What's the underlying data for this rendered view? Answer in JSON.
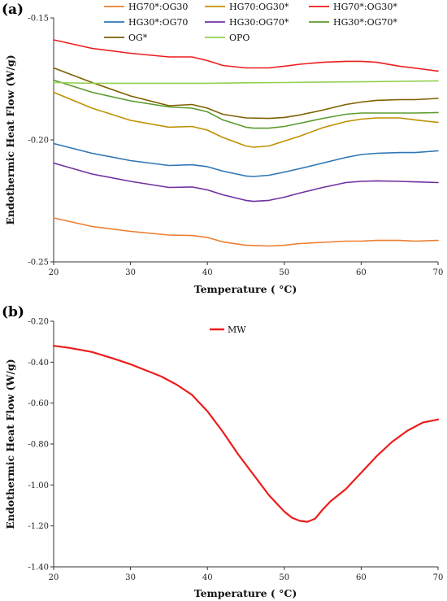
{
  "chart_data": [
    {
      "type": "line",
      "panel_label": "(a)",
      "xlabel": "Temperature ( °C)",
      "ylabel": "Endothermic Heat Flow (W/g)",
      "xlim": [
        20,
        70
      ],
      "ylim": [
        -0.25,
        -0.15
      ],
      "xticks": [
        "20",
        "30",
        "40",
        "50",
        "60",
        "70"
      ],
      "yticks": [
        "-0.15",
        "-0.20",
        "-0.25"
      ],
      "grid": false,
      "legend_position": "top",
      "series": [
        {
          "name": "HG70*:OG30",
          "color": "#ED7D31",
          "x": [
            20,
            25,
            30,
            35,
            38,
            40,
            42,
            45,
            48,
            50,
            52,
            55,
            58,
            60,
            62,
            65,
            67,
            70
          ],
          "y": [
            -0.232,
            -0.2355,
            -0.2375,
            -0.239,
            -0.2392,
            -0.24,
            -0.2418,
            -0.2432,
            -0.2435,
            -0.2432,
            -0.2425,
            -0.242,
            -0.2415,
            -0.2415,
            -0.2412,
            -0.2412,
            -0.2415,
            -0.2412
          ]
        },
        {
          "name": "HG70:OG30*",
          "color": "#BF9000",
          "x": [
            20,
            25,
            30,
            35,
            38,
            40,
            42,
            45,
            46,
            48,
            50,
            52,
            55,
            58,
            60,
            62,
            65,
            67,
            69,
            70
          ],
          "y": [
            -0.1805,
            -0.187,
            -0.192,
            -0.1948,
            -0.1945,
            -0.196,
            -0.199,
            -0.2025,
            -0.203,
            -0.2025,
            -0.2005,
            -0.1985,
            -0.195,
            -0.1925,
            -0.1915,
            -0.191,
            -0.191,
            -0.1918,
            -0.1925,
            -0.1928
          ]
        },
        {
          "name": "HG70*:OG30*",
          "color": "#EE1C1C",
          "x": [
            20,
            25,
            30,
            35,
            38,
            40,
            42,
            45,
            48,
            50,
            52,
            55,
            58,
            60,
            62,
            65,
            68,
            70
          ],
          "y": [
            -0.159,
            -0.1625,
            -0.1645,
            -0.166,
            -0.166,
            -0.1675,
            -0.1695,
            -0.1705,
            -0.1705,
            -0.1698,
            -0.169,
            -0.1682,
            -0.1678,
            -0.1678,
            -0.1682,
            -0.1698,
            -0.171,
            -0.1718
          ]
        },
        {
          "name": "HG30*:OG70",
          "color": "#2E75B6",
          "x": [
            20,
            25,
            30,
            35,
            38,
            40,
            42,
            45,
            46,
            48,
            50,
            52,
            55,
            58,
            60,
            62,
            65,
            67,
            70
          ],
          "y": [
            -0.2015,
            -0.2055,
            -0.2085,
            -0.2105,
            -0.2102,
            -0.211,
            -0.2128,
            -0.2148,
            -0.215,
            -0.2145,
            -0.2132,
            -0.2118,
            -0.2095,
            -0.2072,
            -0.206,
            -0.2055,
            -0.2052,
            -0.2052,
            -0.2045
          ]
        },
        {
          "name": "HG30:OG70*",
          "color": "#7030A0",
          "x": [
            20,
            25,
            30,
            35,
            38,
            40,
            42,
            45,
            46,
            48,
            50,
            52,
            55,
            58,
            60,
            62,
            65,
            67,
            70
          ],
          "y": [
            -0.2095,
            -0.214,
            -0.217,
            -0.2195,
            -0.2193,
            -0.2205,
            -0.2225,
            -0.2248,
            -0.2252,
            -0.2248,
            -0.2235,
            -0.2218,
            -0.2195,
            -0.2175,
            -0.217,
            -0.2168,
            -0.217,
            -0.2172,
            -0.2175
          ]
        },
        {
          "name": "HG30*:OG70*",
          "color": "#5B9B2F",
          "x": [
            20,
            25,
            30,
            35,
            38,
            40,
            42,
            45,
            46,
            48,
            50,
            52,
            55,
            58,
            60,
            62,
            65,
            67,
            70
          ],
          "y": [
            -0.1755,
            -0.1805,
            -0.184,
            -0.1865,
            -0.187,
            -0.1885,
            -0.1918,
            -0.1948,
            -0.1952,
            -0.1952,
            -0.1945,
            -0.1932,
            -0.1912,
            -0.1895,
            -0.189,
            -0.189,
            -0.189,
            -0.189,
            -0.1888
          ]
        },
        {
          "name": "OG*",
          "color": "#7F6000",
          "x": [
            20,
            25,
            30,
            35,
            38,
            40,
            42,
            45,
            48,
            50,
            52,
            55,
            58,
            60,
            62,
            65,
            67,
            70
          ],
          "y": [
            -0.1705,
            -0.1765,
            -0.182,
            -0.186,
            -0.1855,
            -0.187,
            -0.1895,
            -0.191,
            -0.1912,
            -0.1908,
            -0.1898,
            -0.1878,
            -0.1855,
            -0.1845,
            -0.1838,
            -0.1835,
            -0.1835,
            -0.183
          ]
        },
        {
          "name": "OPO",
          "color": "#92D050",
          "x": [
            20,
            25,
            30,
            35,
            40,
            45,
            50,
            55,
            60,
            65,
            70
          ],
          "y": [
            -0.1765,
            -0.1768,
            -0.1768,
            -0.1768,
            -0.1768,
            -0.1766,
            -0.1765,
            -0.1763,
            -0.1762,
            -0.176,
            -0.1758
          ]
        }
      ]
    },
    {
      "type": "line",
      "panel_label": "(b)",
      "xlabel": "Temperature ( °C)",
      "ylabel": "Endothermic Heat Flow (W/g)",
      "xlim": [
        20,
        70
      ],
      "ylim": [
        -1.4,
        -0.2
      ],
      "xticks": [
        "20",
        "30",
        "40",
        "50",
        "60",
        "70"
      ],
      "yticks": [
        "-0.20",
        "-0.40",
        "-0.60",
        "-0.80",
        "-1.00",
        "-1.20",
        "-1.40"
      ],
      "grid": false,
      "legend_position": "top-center",
      "series": [
        {
          "name": "MW",
          "color": "#EE1C1C",
          "x": [
            20,
            22,
            25,
            28,
            30,
            32,
            34,
            36,
            38,
            40,
            42,
            44,
            46,
            48,
            50,
            51,
            52,
            53,
            54,
            55,
            56,
            58,
            60,
            62,
            64,
            66,
            68,
            70
          ],
          "y": [
            -0.32,
            -0.33,
            -0.35,
            -0.385,
            -0.41,
            -0.44,
            -0.47,
            -0.51,
            -0.56,
            -0.64,
            -0.74,
            -0.85,
            -0.95,
            -1.05,
            -1.13,
            -1.16,
            -1.175,
            -1.18,
            -1.165,
            -1.12,
            -1.08,
            -1.02,
            -0.94,
            -0.86,
            -0.79,
            -0.735,
            -0.695,
            -0.68
          ]
        }
      ]
    }
  ]
}
